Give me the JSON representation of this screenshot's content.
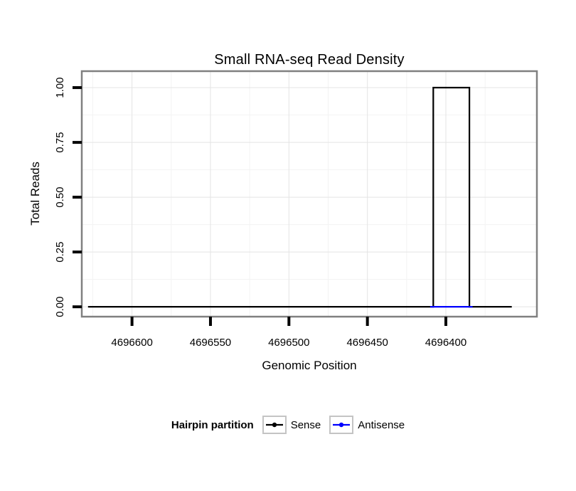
{
  "chart_data": {
    "type": "line",
    "title": "Small RNA-seq Read Density",
    "xlabel": "Genomic Position",
    "ylabel": "Total Reads",
    "x_ticks": [
      4696600,
      4696550,
      4696500,
      4696450,
      4696400
    ],
    "x_tick_labels": [
      "4696600",
      "4696550",
      "4696500",
      "4696450",
      "4696400"
    ],
    "y_ticks": [
      0,
      0.25,
      0.5,
      0.75,
      1
    ],
    "y_tick_labels": [
      "0.00",
      "0.25",
      "0.50",
      "0.75",
      "1.00"
    ],
    "x_domain": [
      4696632,
      4696342
    ],
    "x_axis_reversed": true,
    "y_domain_view": [
      -0.045,
      1.075
    ],
    "ylim": [
      0,
      1
    ],
    "grid": true,
    "panel_border_color": "#808080",
    "grid_major_color": "#e4e4e4",
    "grid_minor_color": "#f3f3f3",
    "series": [
      {
        "name": "Sense",
        "color": "#000000",
        "points": [
          [
            4696628,
            0
          ],
          [
            4696408,
            0
          ],
          [
            4696408,
            1
          ],
          [
            4696385,
            1
          ],
          [
            4696385,
            0
          ],
          [
            4696358,
            0
          ]
        ]
      },
      {
        "name": "Antisense",
        "color": "#0000FF",
        "points": [
          [
            4696410,
            0
          ],
          [
            4696383,
            0
          ]
        ]
      }
    ],
    "legend": {
      "title": "Hairpin partition",
      "position": "bottom"
    }
  }
}
